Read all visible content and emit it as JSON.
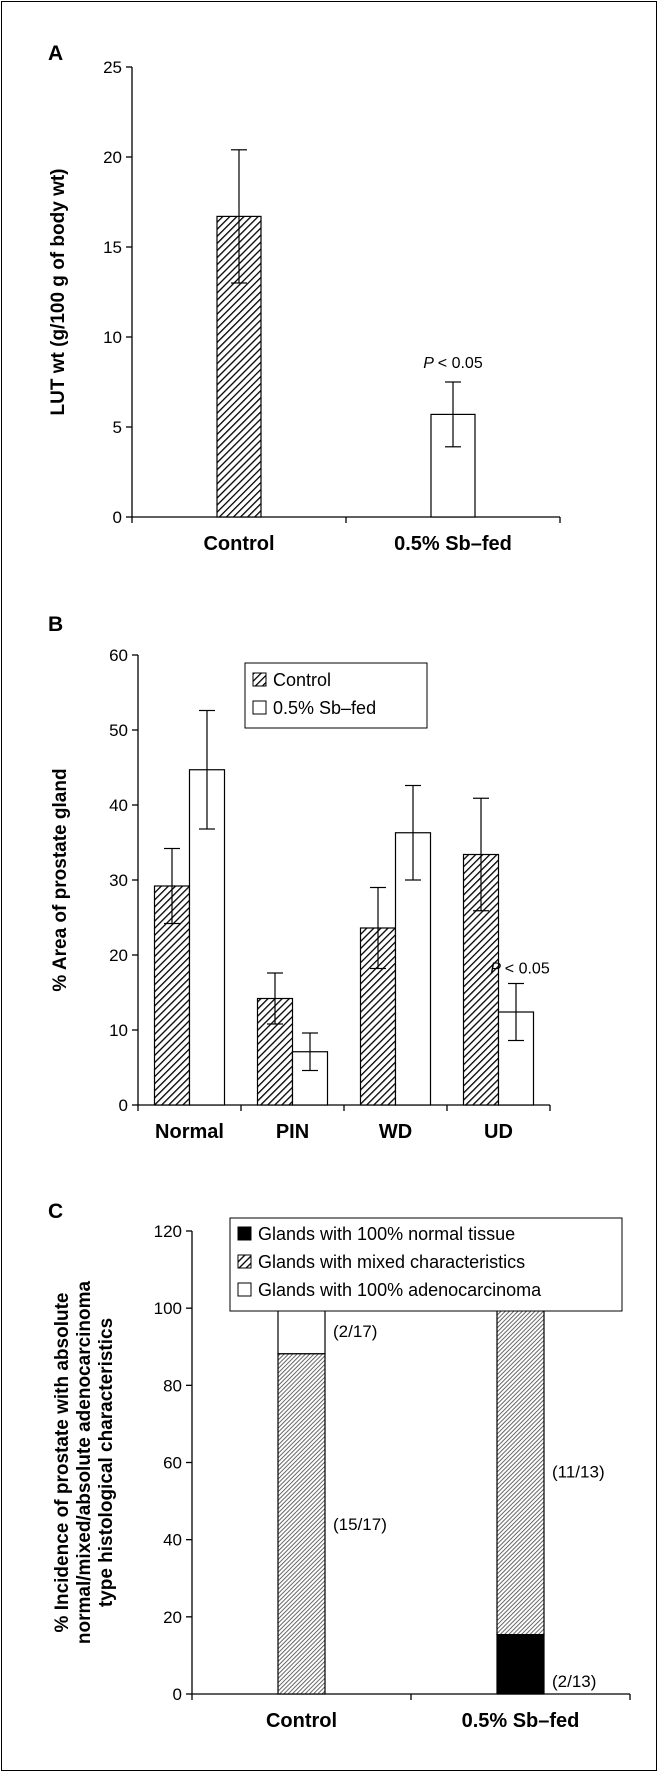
{
  "chart_data": [
    {
      "panel": "A",
      "type": "bar",
      "ylabel": "LUT wt (g/100 g of body wt)",
      "ylim": [
        0,
        25
      ],
      "yticks": [
        0,
        5,
        10,
        15,
        20,
        25
      ],
      "categories": [
        "Control",
        "0.5% Sb–fed"
      ],
      "values": [
        16.7,
        5.7
      ],
      "errors": [
        3.7,
        1.8
      ],
      "fills": [
        "hatch",
        "white"
      ],
      "annotations": [
        {
          "category": 1,
          "text": "< 0.05"
        }
      ]
    },
    {
      "panel": "B",
      "type": "bar",
      "ylabel": "% Area of prostate gland",
      "ylim": [
        0,
        60
      ],
      "yticks": [
        0,
        10,
        20,
        30,
        40,
        50,
        60
      ],
      "categories": [
        "Normal",
        "PIN",
        "WD",
        "UD"
      ],
      "series": [
        {
          "name": "Control",
          "fill": "hatch",
          "values": [
            29.2,
            14.2,
            23.6,
            33.4
          ],
          "errors": [
            5.0,
            3.4,
            5.4,
            7.5
          ]
        },
        {
          "name": "0.5% Sb–fed",
          "fill": "white",
          "values": [
            44.7,
            7.1,
            36.3,
            12.4
          ],
          "errors": [
            7.9,
            2.5,
            6.3,
            3.8
          ]
        }
      ],
      "legend": "top-center",
      "annotations": [
        {
          "category": 3,
          "series": 1,
          "text": "< 0.05"
        }
      ]
    },
    {
      "panel": "C",
      "type": "bar",
      "stacked": true,
      "ylabel": [
        "% Incidence of prostate with absolute",
        "normal/mixed/absolute adenocarcinoma",
        "type histological characteristics"
      ],
      "ylim": [
        0,
        120
      ],
      "yticks": [
        0,
        20,
        40,
        60,
        80,
        100,
        120
      ],
      "categories": [
        "Control",
        "0.5% Sb–fed"
      ],
      "series": [
        {
          "name": "Glands with 100% normal tissue",
          "fill": "black",
          "values": [
            0,
            15.4
          ],
          "labels": [
            "",
            "(2/13)"
          ]
        },
        {
          "name": "Glands with mixed characteristics",
          "fill": "hatch",
          "values": [
            88.2,
            84.6
          ],
          "labels": [
            "(15/17)",
            "(11/13)"
          ]
        },
        {
          "name": "Glands with 100% adenocarcinoma",
          "fill": "white",
          "values": [
            11.8,
            0
          ],
          "labels": [
            "(2/17)",
            ""
          ]
        }
      ],
      "legend": "top-right"
    }
  ]
}
